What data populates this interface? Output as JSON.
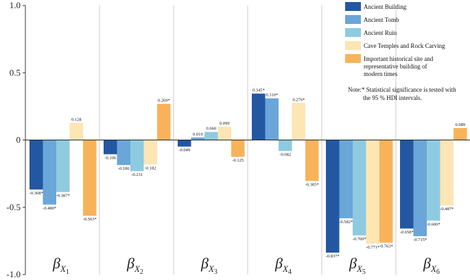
{
  "chart_data": {
    "type": "bar",
    "title": "",
    "xlabel": "",
    "ylabel": "",
    "ylim": [
      -1.0,
      1.0
    ],
    "yticks": [
      "1.0",
      "0.5",
      "0",
      "-0.5",
      "-1.0"
    ],
    "grid": "vertical separators between groups",
    "categories": [
      {
        "base": "β",
        "sub": "X",
        "subsub": "1"
      },
      {
        "base": "β",
        "sub": "X",
        "subsub": "2"
      },
      {
        "base": "β",
        "sub": "X",
        "subsub": "3"
      },
      {
        "base": "β",
        "sub": "X",
        "subsub": "4"
      },
      {
        "base": "β",
        "sub": "X",
        "subsub": "5"
      },
      {
        "base": "β",
        "sub": "X",
        "subsub": "6"
      }
    ],
    "series": [
      {
        "name": "Ancient Building",
        "color": "#2357a2",
        "values": [
          -0.368,
          -0.106,
          -0.049,
          0.345,
          -0.837,
          -0.658
        ],
        "labels": [
          "-0.368*",
          "-0.106",
          "-0.049",
          "0.345*",
          "-0.837*",
          "-0.658*"
        ]
      },
      {
        "name": "Ancient Tomb",
        "color": "#6aa6d8",
        "values": [
          -0.48,
          -0.186,
          0.019,
          0.31,
          -0.582,
          -0.715
        ],
        "labels": [
          "-0.480*",
          "-0.186",
          "0.019",
          "0.310*",
          "-0.582*",
          "-0.715*"
        ]
      },
      {
        "name": "Ancient Ruin",
        "color": "#8ecbe0",
        "values": [
          -0.387,
          -0.231,
          0.06,
          -0.082,
          -0.709,
          -0.6
        ],
        "labels": [
          "-0.387*",
          "-0.231",
          "0.060",
          "-0.082",
          "-0.709*",
          "-0.600*"
        ]
      },
      {
        "name": "Cave Temples and Rock Carving",
        "color": "#fde5b4",
        "values": [
          0.128,
          -0.182,
          0.099,
          0.276,
          -0.771,
          -0.487
        ],
        "labels": [
          "0.128",
          "-0.182",
          "0.099",
          "0.276*",
          "-0.771*",
          "-0.487*"
        ]
      },
      {
        "name": "Important historical site and representative building of modern times",
        "color": "#f8b35a",
        "values": [
          -0.563,
          0.269,
          -0.125,
          -0.305,
          -0.763,
          0.089
        ],
        "labels": [
          "-0.563*",
          "0.269*",
          "-0.125",
          "-0.305*",
          "-0.763*",
          "0.089"
        ]
      }
    ],
    "legend": {
      "position": "top-right",
      "entries": [
        "Ancient Building",
        "Ancient Tomb",
        "Ancient Ruin",
        "Cave Temples and Rock Carving",
        [
          "Important historical site and",
          "representative building of",
          "modern times"
        ]
      ]
    },
    "annotation": [
      "Note:* Statistical significance is tested with",
      "the 95 % HDI intervals."
    ]
  }
}
